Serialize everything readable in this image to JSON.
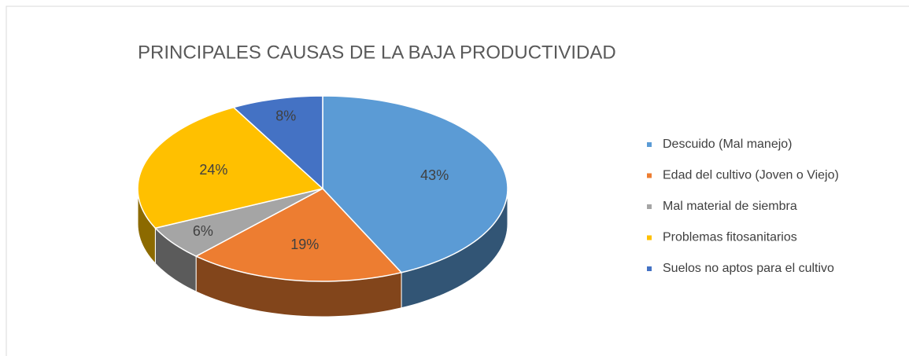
{
  "chart_data": {
    "type": "pie",
    "title": "PRINCIPALES CAUSAS DE LA BAJA PRODUCTIVIDAD",
    "categories": [
      "Descuido (Mal manejo)",
      "Edad del cultivo (Joven o Viejo)",
      "Mal material de siembra",
      "Problemas fitosanitarios",
      "Suelos no aptos para el cultivo"
    ],
    "values": [
      43,
      19,
      6,
      24,
      8
    ],
    "value_labels": [
      "43%",
      "19%",
      "6%",
      "24%",
      "8%"
    ],
    "colors": [
      "#5b9bd5",
      "#ed7d31",
      "#a5a5a5",
      "#ffc000",
      "#4472c4"
    ],
    "legend": "right"
  }
}
